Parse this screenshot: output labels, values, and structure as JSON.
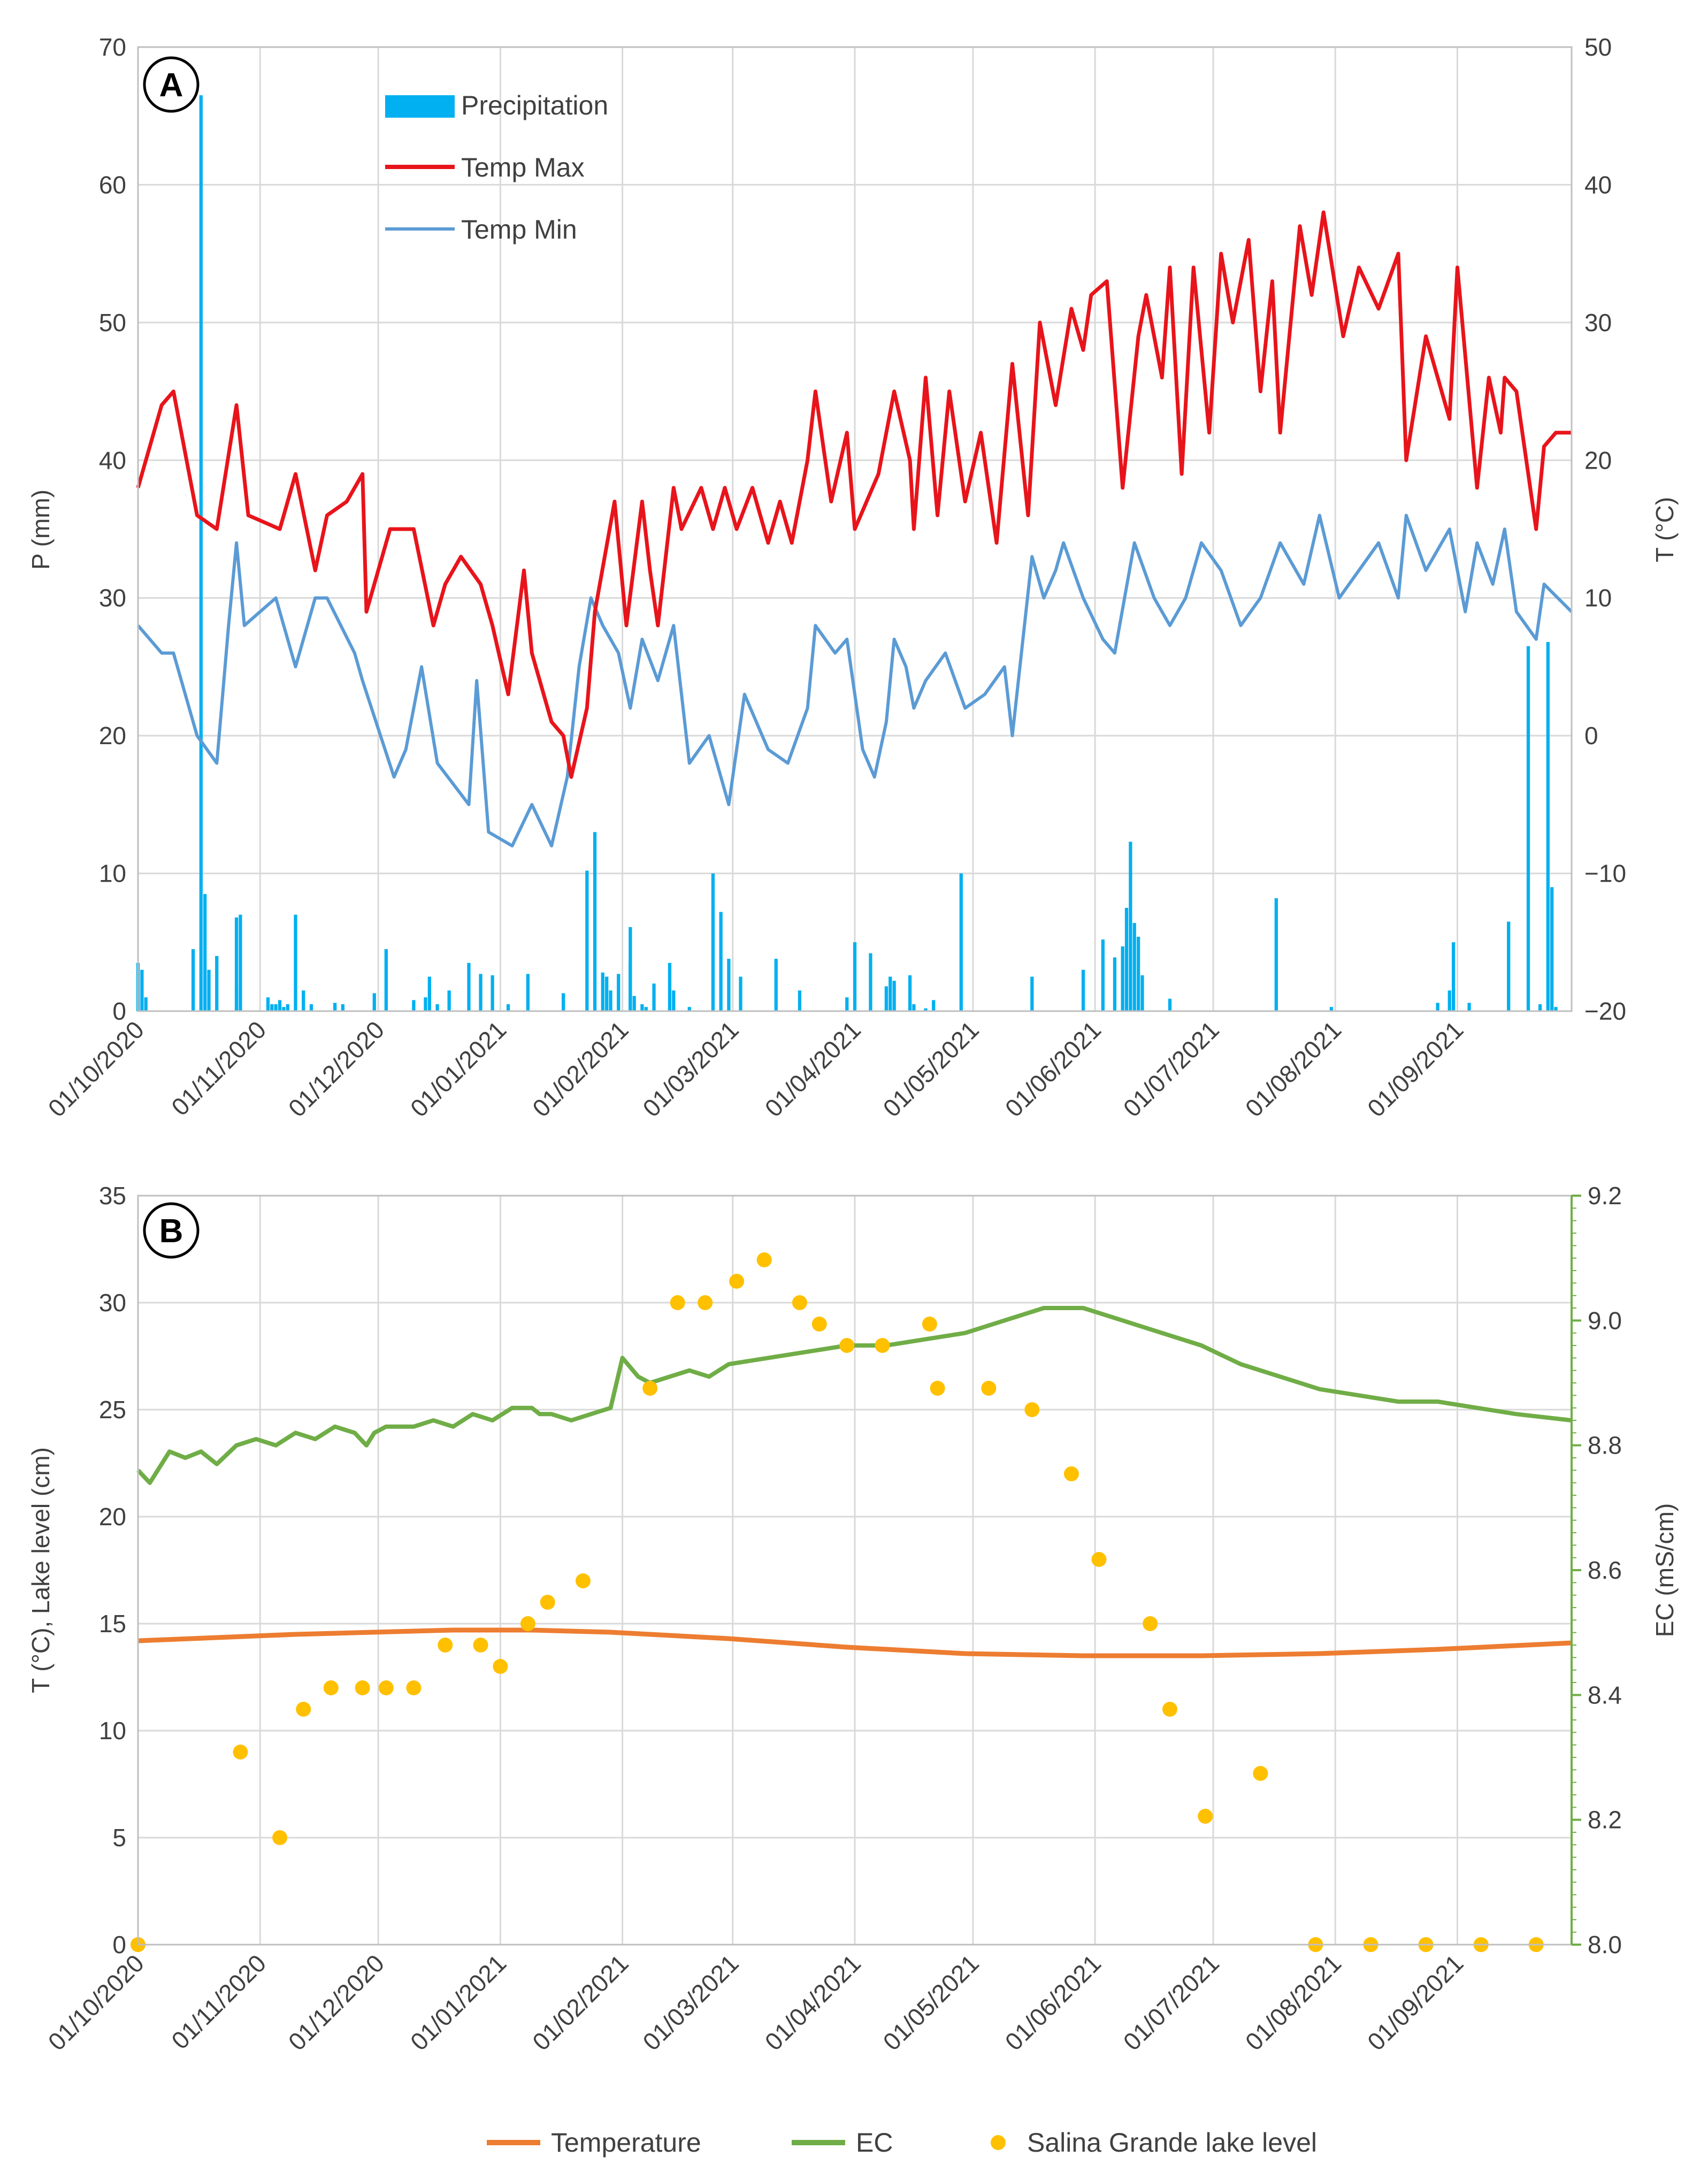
{
  "chart_data": [
    {
      "panel": "A",
      "type": "bar+line",
      "x_range": [
        "01/10/2020",
        "30/09/2021"
      ],
      "x_tick_labels": [
        "01/10/2020",
        "01/11/2020",
        "01/12/2020",
        "01/01/2021",
        "01/02/2021",
        "01/03/2021",
        "01/04/2021",
        "01/05/2021",
        "01/06/2021",
        "01/07/2021",
        "01/08/2021",
        "01/09/2021"
      ],
      "ylabel_left": "P (mm)",
      "ylabel_right": "T (°C)",
      "ylim_left": [
        0,
        70
      ],
      "ylim_right": [
        -20,
        50
      ],
      "yticks_left": [
        "0",
        "10",
        "20",
        "30",
        "40",
        "50",
        "60",
        "70"
      ],
      "yticks_right": [
        "−20",
        "−10",
        "0",
        "10",
        "20",
        "30",
        "40",
        "50"
      ],
      "grid": true,
      "legend": [
        "Precipitation",
        "Temp Max",
        "Temp Min"
      ],
      "colors": {
        "precip": "#00b0f0",
        "tmax": "#e8141b",
        "tmin": "#5b9bd5"
      },
      "precipitation": {
        "day": [
          0,
          1,
          2,
          14,
          16,
          17,
          18,
          20,
          25,
          25,
          26,
          33,
          34,
          35,
          36,
          37,
          38,
          40,
          42,
          44,
          50,
          52,
          60,
          63,
          70,
          73,
          74,
          76,
          79,
          84,
          87,
          90,
          94,
          99,
          108,
          114,
          116,
          118,
          119,
          120,
          122,
          125,
          125,
          126,
          128,
          129,
          131,
          135,
          136,
          140,
          146,
          148,
          150,
          153,
          162,
          168,
          180,
          182,
          186,
          190,
          191,
          192,
          196,
          197,
          200,
          202,
          209,
          227,
          240,
          245,
          248,
          250,
          251,
          252,
          253,
          254,
          255,
          262,
          289,
          303,
          330,
          333,
          334,
          338,
          348,
          353,
          356,
          358,
          359,
          360
        ],
        "mm": [
          3.5,
          3,
          1,
          4.5,
          66.5,
          8.5,
          3,
          4,
          1.8,
          6.8,
          7,
          1,
          0.5,
          0.5,
          0.8,
          0.3,
          0.5,
          7,
          1.5,
          0.5,
          0.6,
          0.5,
          1.3,
          4.5,
          0.8,
          1,
          2.5,
          0.5,
          1.5,
          3.5,
          2.7,
          2.6,
          0.5,
          2.7,
          1.3,
          10.2,
          13,
          2.8,
          2.5,
          1.5,
          2.7,
          3.5,
          6.1,
          1.1,
          0.5,
          0.3,
          2,
          3.5,
          1.5,
          0.3,
          10,
          7.2,
          3.8,
          2.5,
          3.8,
          1.5,
          1,
          5,
          4.2,
          1.8,
          2.5,
          2.2,
          2.6,
          0.5,
          0.2,
          0.8,
          10,
          2.5,
          3,
          5.2,
          3.9,
          4.7,
          7.5,
          12.3,
          6.4,
          5.4,
          2.6,
          0.9,
          8.2,
          0.3,
          0.6,
          1.5,
          5,
          0.6,
          6.5,
          26.5,
          0.5,
          26.8,
          9,
          0.3
        ]
      },
      "temp_max": {
        "day": [
          0,
          6,
          9,
          15,
          20,
          25,
          28,
          36,
          40,
          45,
          48,
          53,
          57,
          58,
          64,
          70,
          75,
          78,
          82,
          87,
          90,
          94,
          98,
          100,
          105,
          108,
          110,
          114,
          116,
          121,
          124,
          128,
          130,
          132,
          136,
          138,
          143,
          146,
          149,
          152,
          156,
          160,
          163,
          166,
          170,
          172,
          176,
          180,
          182,
          188,
          192,
          196,
          197,
          200,
          203,
          206,
          210,
          214,
          218,
          222,
          226,
          229,
          233,
          237,
          240,
          242,
          246,
          250,
          254,
          256,
          260,
          262,
          265,
          268,
          272,
          275,
          278,
          282,
          285,
          288,
          290,
          295,
          298,
          301,
          306,
          310,
          315,
          320,
          322,
          327,
          333,
          335,
          340,
          343,
          346,
          347,
          350,
          355,
          357,
          360,
          364
        ],
        "C": [
          18,
          24,
          25,
          16,
          15,
          24,
          16,
          15,
          19,
          12,
          16,
          17,
          19,
          9,
          15,
          15,
          8,
          11,
          13,
          11,
          8,
          3,
          12,
          6,
          1,
          0,
          -3,
          2,
          9,
          17,
          8,
          17,
          12,
          8,
          18,
          15,
          18,
          15,
          18,
          15,
          18,
          14,
          17,
          14,
          20,
          25,
          17,
          22,
          15,
          19,
          25,
          20,
          15,
          26,
          16,
          25,
          17,
          22,
          14,
          27,
          16,
          30,
          24,
          31,
          28,
          32,
          33,
          18,
          29,
          32,
          26,
          34,
          19,
          34,
          22,
          35,
          30,
          36,
          25,
          33,
          22,
          37,
          32,
          38,
          29,
          34,
          31,
          35,
          20,
          29,
          23,
          34,
          18,
          26,
          22,
          26,
          25,
          15,
          21,
          22,
          22
        ]
      },
      "temp_min": {
        "day": [
          0,
          6,
          9,
          15,
          20,
          23,
          25,
          27,
          35,
          40,
          45,
          48,
          55,
          57,
          65,
          68,
          72,
          76,
          84,
          86,
          89,
          95,
          100,
          105,
          109,
          112,
          115,
          118,
          122,
          125,
          128,
          132,
          136,
          140,
          145,
          150,
          154,
          160,
          165,
          170,
          172,
          177,
          180,
          184,
          187,
          190,
          192,
          195,
          197,
          200,
          205,
          210,
          215,
          220,
          222,
          227,
          230,
          233,
          235,
          240,
          245,
          248,
          253,
          258,
          262,
          266,
          270,
          275,
          280,
          285,
          290,
          296,
          300,
          305,
          310,
          315,
          320,
          322,
          327,
          333,
          337,
          340,
          344,
          347,
          350,
          355,
          357,
          364
        ],
        "C": [
          8,
          6,
          6,
          0,
          -2,
          8,
          14,
          8,
          10,
          5,
          10,
          10,
          6,
          4,
          -3,
          -1,
          5,
          -2,
          -5,
          4,
          -7,
          -8,
          -5,
          -8,
          -3,
          5,
          10,
          8,
          6,
          2,
          7,
          4,
          8,
          -2,
          0,
          -5,
          3,
          -1,
          -2,
          2,
          8,
          6,
          7,
          -1,
          -3,
          1,
          7,
          5,
          2,
          4,
          6,
          2,
          3,
          5,
          0,
          13,
          10,
          12,
          14,
          10,
          7,
          6,
          14,
          10,
          8,
          10,
          14,
          12,
          8,
          10,
          14,
          11,
          16,
          10,
          12,
          14,
          10,
          16,
          12,
          15,
          9,
          14,
          11,
          15,
          9,
          7,
          11,
          9
        ]
      }
    },
    {
      "panel": "B",
      "type": "line+scatter",
      "x_range": [
        "01/10/2020",
        "30/09/2021"
      ],
      "x_tick_labels": [
        "01/10/2020",
        "01/11/2020",
        "01/12/2020",
        "01/01/2021",
        "01/02/2021",
        "01/03/2021",
        "01/04/2021",
        "01/05/2021",
        "01/06/2021",
        "01/07/2021",
        "01/08/2021",
        "01/09/2021"
      ],
      "ylabel_left": "T (°C), Lake level (cm)",
      "ylabel_right": "EC (mS/cm)",
      "ylim_left": [
        0,
        35
      ],
      "ylim_right": [
        8.0,
        9.2
      ],
      "yticks_left": [
        "0",
        "5",
        "10",
        "15",
        "20",
        "25",
        "30",
        "35"
      ],
      "yticks_right": [
        "8.0",
        "8.2",
        "8.4",
        "8.6",
        "8.8",
        "9.0",
        "9.2"
      ],
      "grid": true,
      "legend": [
        "Temperature",
        "EC",
        "Salina Grande lake level"
      ],
      "colors": {
        "temperature": "#ed7d31",
        "ec": "#70ad47",
        "lake": "#ffc000"
      },
      "temperature": {
        "day": [
          0,
          40,
          80,
          100,
          120,
          150,
          180,
          210,
          240,
          270,
          300,
          330,
          364
        ],
        "C": [
          14.2,
          14.5,
          14.7,
          14.7,
          14.6,
          14.3,
          13.9,
          13.6,
          13.5,
          13.5,
          13.6,
          13.8,
          14.1
        ]
      },
      "ec": {
        "day": [
          0,
          3,
          8,
          12,
          16,
          20,
          25,
          30,
          35,
          40,
          45,
          50,
          55,
          58,
          60,
          63,
          65,
          70,
          75,
          80,
          85,
          90,
          95,
          100,
          102,
          105,
          110,
          115,
          120,
          123,
          127,
          130,
          135,
          140,
          145,
          150,
          160,
          170,
          180,
          190,
          200,
          210,
          220,
          230,
          240,
          250,
          260,
          270,
          280,
          290,
          300,
          310,
          320,
          330,
          340,
          350,
          364
        ],
        "mScm": [
          8.76,
          8.74,
          8.79,
          8.78,
          8.79,
          8.77,
          8.8,
          8.81,
          8.8,
          8.82,
          8.81,
          8.83,
          8.82,
          8.8,
          8.82,
          8.83,
          8.83,
          8.83,
          8.84,
          8.83,
          8.85,
          8.84,
          8.86,
          8.86,
          8.85,
          8.85,
          8.84,
          8.85,
          8.86,
          8.94,
          8.91,
          8.9,
          8.91,
          8.92,
          8.91,
          8.93,
          8.94,
          8.95,
          8.96,
          8.96,
          8.97,
          8.98,
          9.0,
          9.02,
          9.02,
          9.0,
          8.98,
          8.96,
          8.93,
          8.91,
          8.89,
          8.88,
          8.87,
          8.87,
          8.86,
          8.85,
          8.84
        ]
      },
      "lake_level": {
        "day": [
          0,
          26,
          36,
          42,
          49,
          57,
          63,
          70,
          78,
          87,
          92,
          99,
          104,
          113,
          130,
          137,
          144,
          152,
          159,
          168,
          173,
          180,
          189,
          201,
          203,
          216,
          227,
          237,
          244,
          257,
          262,
          271,
          285,
          299,
          313,
          327,
          341,
          355
        ],
        "cm": [
          0,
          9,
          5,
          11,
          12,
          12,
          12,
          12,
          14,
          14,
          13,
          15,
          16,
          17,
          26,
          30,
          30,
          31,
          32,
          30,
          29,
          28,
          28,
          29,
          26,
          26,
          25,
          22,
          18,
          15,
          11,
          6,
          8,
          0,
          0,
          0,
          0,
          0
        ]
      }
    }
  ]
}
